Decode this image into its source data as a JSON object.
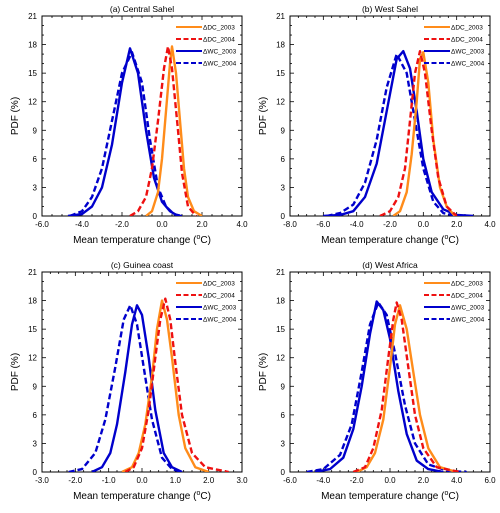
{
  "chart_data": [
    {
      "type": "line",
      "title": "(a) Central Sahel",
      "xlabel": "Mean temperature change (",
      "xlabel_unit": "o",
      "xlabel_tail": "C)",
      "ylabel": "PDF (%)",
      "xlim": [
        -6.0,
        4.0
      ],
      "ylim": [
        0,
        21
      ],
      "xticks": [
        "-6.0",
        "-4.0",
        "-2.0",
        "0.0",
        "2.0",
        "4.0"
      ],
      "yticks": [
        "0",
        "3",
        "6",
        "9",
        "12",
        "15",
        "18",
        "21"
      ],
      "legend_position": "top-right",
      "series": [
        {
          "name": "ΔDC_2003",
          "color": "#ff8c1a",
          "dash": "solid",
          "x": [
            -0.8,
            -0.5,
            -0.2,
            0.0,
            0.2,
            0.4,
            0.5,
            0.7,
            0.9,
            1.1,
            1.3,
            1.6,
            2.0
          ],
          "y": [
            0,
            0.5,
            2.5,
            6,
            11,
            16,
            17.8,
            15,
            10,
            5,
            2,
            0.5,
            0
          ]
        },
        {
          "name": "ΔDC_2004",
          "color": "#ee1111",
          "dash": "dashed",
          "x": [
            -1.6,
            -1.2,
            -0.8,
            -0.5,
            -0.2,
            0.1,
            0.3,
            0.5,
            0.8,
            1.0,
            1.3,
            1.7
          ],
          "y": [
            0,
            0.5,
            2,
            5,
            10,
            15.5,
            17.8,
            15.5,
            9,
            4.5,
            1,
            0
          ]
        },
        {
          "name": "ΔWC_2003",
          "color": "#0000cc",
          "dash": "solid",
          "x": [
            -4.7,
            -4.0,
            -3.5,
            -3.0,
            -2.5,
            -2.0,
            -1.6,
            -1.2,
            -0.8,
            -0.4,
            0.0,
            0.4,
            0.8,
            1.0
          ],
          "y": [
            0,
            0.2,
            1,
            3,
            7.5,
            14,
            17.6,
            15,
            9,
            4,
            1.5,
            0.5,
            0,
            0
          ]
        },
        {
          "name": "ΔWC_2004",
          "color": "#0000cc",
          "dash": "dashed",
          "x": [
            -4.6,
            -4.0,
            -3.5,
            -3.0,
            -2.5,
            -2.0,
            -1.5,
            -1.0,
            -0.6,
            -0.2,
            0.2,
            0.6,
            1.0
          ],
          "y": [
            0,
            0.5,
            2,
            5,
            10,
            15,
            17.2,
            14,
            8,
            3,
            1,
            0.2,
            0
          ]
        }
      ]
    },
    {
      "type": "line",
      "title": "(b) West Sahel",
      "xlabel": "Mean temperature change (",
      "xlabel_unit": "o",
      "xlabel_tail": "C)",
      "ylabel": "PDF (%)",
      "xlim": [
        -8.0,
        4.0
      ],
      "ylim": [
        0,
        21
      ],
      "xticks": [
        "-8.0",
        "-6.0",
        "-4.0",
        "-2.0",
        "0.0",
        "2.0",
        "4.0"
      ],
      "yticks": [
        "0",
        "3",
        "6",
        "9",
        "12",
        "15",
        "18",
        "21"
      ],
      "legend_position": "top-right",
      "series": [
        {
          "name": "ΔDC_2003",
          "color": "#ff8c1a",
          "dash": "solid",
          "x": [
            -1.8,
            -1.4,
            -1.0,
            -0.7,
            -0.4,
            -0.2,
            0.0,
            0.3,
            0.6,
            1.0,
            1.4,
            1.9
          ],
          "y": [
            0,
            0.5,
            2.5,
            6.5,
            12,
            16.5,
            17.2,
            14,
            8,
            3,
            1,
            0
          ]
        },
        {
          "name": "ΔDC_2004",
          "color": "#ee1111",
          "dash": "dashed",
          "x": [
            -2.6,
            -2.0,
            -1.5,
            -1.1,
            -0.8,
            -0.5,
            -0.2,
            0.1,
            0.5,
            0.9,
            1.4,
            2.0
          ],
          "y": [
            0,
            0.5,
            2,
            5,
            10,
            15,
            17.3,
            15,
            9,
            4,
            1,
            0
          ]
        },
        {
          "name": "ΔWC_2003",
          "color": "#0000cc",
          "dash": "solid",
          "x": [
            -6.0,
            -5.0,
            -4.2,
            -3.5,
            -2.8,
            -2.2,
            -1.6,
            -1.2,
            -0.8,
            -0.4,
            0.0,
            0.5,
            1.2,
            2.0,
            3.0
          ],
          "y": [
            0,
            0.1,
            0.5,
            2,
            5.5,
            11,
            16.5,
            17.3,
            15.5,
            11,
            6,
            2.5,
            0.7,
            0.1,
            0
          ]
        },
        {
          "name": "ΔWC_2004",
          "color": "#0000cc",
          "dash": "dashed",
          "x": [
            -5.8,
            -5.0,
            -4.2,
            -3.5,
            -2.8,
            -2.2,
            -1.6,
            -1.0,
            -0.5,
            0.0,
            0.6,
            1.2,
            2.0
          ],
          "y": [
            0,
            0.3,
            1.2,
            3.5,
            8,
            13.5,
            17,
            15,
            10,
            5,
            1.5,
            0.3,
            0
          ]
        }
      ]
    },
    {
      "type": "line",
      "title": "(c) Guinea coast",
      "xlabel": "Mean temperature change (",
      "xlabel_unit": "o",
      "xlabel_tail": "C)",
      "ylabel": "PDF (%)",
      "xlim": [
        -3.0,
        3.0
      ],
      "ylim": [
        0,
        21
      ],
      "xticks": [
        "-3.0",
        "-2.0",
        "-1.0",
        "0.0",
        "1.0",
        "2.0",
        "3.0"
      ],
      "yticks": [
        "0",
        "3",
        "6",
        "9",
        "12",
        "15",
        "18",
        "21"
      ],
      "legend_position": "top-right",
      "series": [
        {
          "name": "ΔDC_2003",
          "color": "#ff8c1a",
          "dash": "solid",
          "x": [
            -0.6,
            -0.3,
            -0.1,
            0.1,
            0.3,
            0.45,
            0.6,
            0.75,
            0.9,
            1.1,
            1.3,
            1.6,
            2.0
          ],
          "y": [
            0,
            0.5,
            2,
            5,
            10,
            15,
            18,
            16,
            12,
            6,
            2.5,
            0.5,
            0
          ]
        },
        {
          "name": "ΔDC_2004",
          "color": "#ee1111",
          "dash": "dashed",
          "x": [
            -0.5,
            -0.25,
            0.0,
            0.2,
            0.4,
            0.55,
            0.7,
            0.85,
            1.0,
            1.2,
            1.5,
            1.9,
            2.6
          ],
          "y": [
            0,
            0.5,
            2.5,
            6.5,
            12,
            16,
            18.2,
            16,
            11.5,
            6,
            2,
            0.5,
            0
          ]
        },
        {
          "name": "ΔWC_2003",
          "color": "#0000cc",
          "dash": "solid",
          "x": [
            -1.5,
            -1.2,
            -0.95,
            -0.75,
            -0.5,
            -0.3,
            -0.15,
            0.0,
            0.2,
            0.4,
            0.65,
            0.9,
            1.2
          ],
          "y": [
            0,
            0.5,
            2,
            5,
            10.5,
            15.5,
            17.5,
            16.5,
            12,
            6.5,
            2,
            0.5,
            0
          ]
        },
        {
          "name": "ΔWC_2004",
          "color": "#0000cc",
          "dash": "dashed",
          "x": [
            -2.2,
            -1.8,
            -1.4,
            -1.1,
            -0.8,
            -0.55,
            -0.35,
            -0.15,
            0.05,
            0.3,
            0.6,
            0.9,
            1.2
          ],
          "y": [
            0,
            0.3,
            2,
            5.5,
            11,
            16,
            17.5,
            15.5,
            11,
            5.5,
            1.5,
            0.3,
            0
          ]
        }
      ]
    },
    {
      "type": "line",
      "title": "(d) West Africa",
      "xlabel": "Mean temperature change (",
      "xlabel_unit": "o",
      "xlabel_tail": "C)",
      "ylabel": "PDF (%)",
      "xlim": [
        -6.0,
        6.0
      ],
      "ylim": [
        0,
        21
      ],
      "xticks": [
        "-6.0",
        "-4.0",
        "-2.0",
        "0.0",
        "2.0",
        "4.0",
        "6.0"
      ],
      "yticks": [
        "0",
        "3",
        "6",
        "9",
        "12",
        "15",
        "18",
        "21"
      ],
      "legend_position": "top-right",
      "series": [
        {
          "name": "ΔDC_2003",
          "color": "#ff8c1a",
          "dash": "solid",
          "x": [
            -2.0,
            -1.4,
            -0.9,
            -0.4,
            0.0,
            0.3,
            0.6,
            1.0,
            1.4,
            1.8,
            2.3,
            3.0,
            4.0
          ],
          "y": [
            0,
            0.5,
            2,
            5.5,
            11,
            15.5,
            17.5,
            15,
            10.5,
            6,
            2.5,
            0.5,
            0
          ]
        },
        {
          "name": "ΔDC_2004",
          "color": "#ee1111",
          "dash": "dashed",
          "x": [
            -2.2,
            -1.5,
            -1.0,
            -0.5,
            -0.1,
            0.2,
            0.4,
            0.7,
            1.1,
            1.5,
            2.0,
            2.8,
            4.2
          ],
          "y": [
            0,
            0.5,
            2.5,
            6.5,
            12,
            16,
            17.8,
            16,
            11,
            6,
            2.5,
            0.5,
            0
          ]
        },
        {
          "name": "ΔWC_2003",
          "color": "#0000cc",
          "dash": "solid",
          "x": [
            -4.5,
            -3.6,
            -2.8,
            -2.2,
            -1.7,
            -1.2,
            -0.8,
            -0.4,
            0.0,
            0.5,
            1.0,
            1.6,
            2.3,
            3.2
          ],
          "y": [
            0,
            0.3,
            1.5,
            4.5,
            9,
            14.5,
            17.9,
            17,
            14,
            8.5,
            4,
            1.2,
            0.3,
            0
          ]
        },
        {
          "name": "ΔWC_2004",
          "color": "#0000cc",
          "dash": "dashed",
          "x": [
            -5.0,
            -4.0,
            -3.0,
            -2.3,
            -1.7,
            -1.2,
            -0.7,
            -0.2,
            0.3,
            0.9,
            1.5,
            2.3,
            3.5,
            4.6
          ],
          "y": [
            0,
            0.3,
            1.8,
            5,
            10.5,
            15.5,
            17.8,
            16.5,
            12.5,
            7,
            3,
            0.8,
            0.1,
            0
          ]
        }
      ]
    }
  ]
}
